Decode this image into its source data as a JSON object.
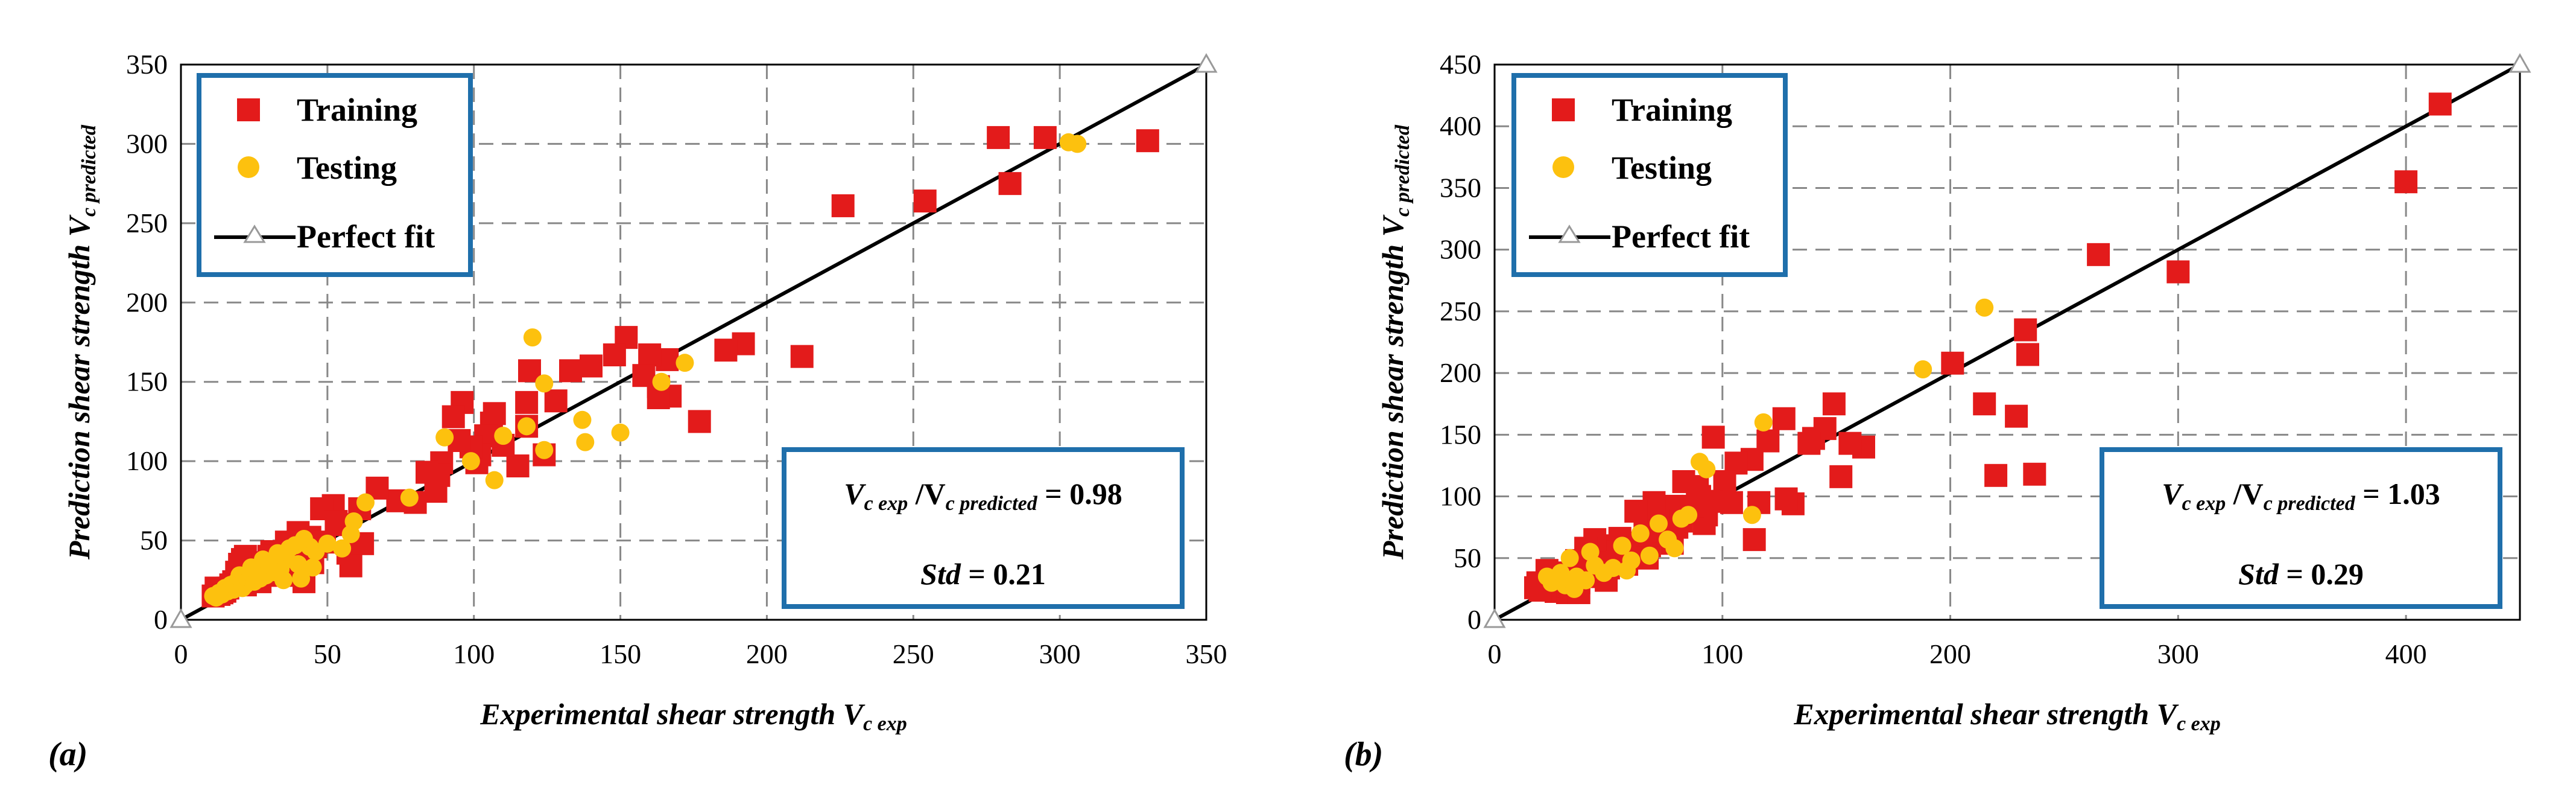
{
  "chart_data": [
    {
      "type": "scatter",
      "panel_label": "(a)",
      "xlabel": {
        "main": "Experimental shear strength V",
        "sub": "c exp"
      },
      "ylabel": {
        "main": "Prediction  shear strength V",
        "sub": "c predicted"
      },
      "xlim": [
        0,
        350
      ],
      "ylim": [
        0,
        350
      ],
      "xticks": [
        "0",
        "50",
        "100",
        "150",
        "200",
        "250",
        "300",
        "350"
      ],
      "yticks": [
        "0",
        "50",
        "100",
        "150",
        "200",
        "250",
        "300",
        "350"
      ],
      "grid": true,
      "legend": {
        "placement": "top-left",
        "training": "Training",
        "testing": "Testing",
        "fit": "Perfect fit"
      },
      "stats": {
        "v1": "V",
        "s1": "c exp",
        "slash": " /V",
        "s2": "c predicted",
        "eq": " = 0.98",
        "std_label": "Std",
        "std_eq": " = 0.21"
      },
      "series": [
        {
          "name": "Training",
          "marker": "square",
          "color": "#e31b1b",
          "points": [
            [
              330,
              302
            ],
            [
              295,
              304
            ],
            [
              279,
              304
            ],
            [
              283,
              275
            ],
            [
              254,
              264
            ],
            [
              226,
              261
            ],
            [
              212,
              166
            ],
            [
              177,
              125
            ],
            [
              192,
              174
            ],
            [
              186,
              170
            ],
            [
              167,
              141
            ],
            [
              166,
              164
            ],
            [
              163,
              147
            ],
            [
              160,
              167
            ],
            [
              163,
              140
            ],
            [
              158,
              154
            ],
            [
              152,
              178
            ],
            [
              148,
              167
            ],
            [
              140,
              160
            ],
            [
              133,
              157
            ],
            [
              128,
              138
            ],
            [
              124,
              104
            ],
            [
              119,
              157
            ],
            [
              118,
              137
            ],
            [
              118,
              122
            ],
            [
              115,
              97
            ],
            [
              110,
              110
            ],
            [
              107,
              130
            ],
            [
              106,
              124
            ],
            [
              104,
              116
            ],
            [
              102,
              104
            ],
            [
              101,
              99
            ],
            [
              99,
              109
            ],
            [
              96,
              137
            ],
            [
              95,
              113
            ],
            [
              93,
              128
            ],
            [
              89,
              99
            ],
            [
              88,
              91
            ],
            [
              84,
              93
            ],
            [
              87,
              81
            ],
            [
              80,
              74
            ],
            [
              74,
              75
            ],
            [
              67,
              83
            ],
            [
              62,
              48
            ],
            [
              61,
              70
            ],
            [
              57,
              42
            ],
            [
              58,
              34
            ],
            [
              54,
              60
            ],
            [
              52,
              72
            ],
            [
              48,
              70
            ],
            [
              46,
              46
            ],
            [
              44,
              52
            ],
            [
              43,
              40
            ],
            [
              41,
              38
            ],
            [
              40,
              55
            ],
            [
              38,
              43
            ],
            [
              36,
              49
            ],
            [
              35,
              37
            ],
            [
              34,
              32
            ],
            [
              33,
              28
            ],
            [
              31,
              43
            ],
            [
              30,
              40
            ],
            [
              28,
              36
            ],
            [
              28,
              30
            ],
            [
              27,
              24
            ],
            [
              25,
              33
            ],
            [
              24,
              29
            ],
            [
              23,
              26
            ],
            [
              22,
              40
            ],
            [
              21,
              38
            ],
            [
              20,
              35
            ],
            [
              19,
              30
            ],
            [
              18,
              24
            ],
            [
              17,
              22
            ],
            [
              16,
              20
            ],
            [
              15,
              18
            ],
            [
              14,
              17
            ],
            [
              13,
              16
            ],
            [
              12,
              20
            ],
            [
              11,
              15
            ],
            [
              38,
              28
            ],
            [
              45,
              36
            ],
            [
              49,
              49
            ],
            [
              53,
              62
            ],
            [
              42,
              24
            ],
            [
              36,
              30
            ],
            [
              31,
              34
            ],
            [
              26,
              30
            ],
            [
              22,
              22
            ]
          ]
        },
        {
          "name": "Testing",
          "marker": "circle",
          "color": "#fdc10e",
          "points": [
            [
              306,
              300
            ],
            [
              303,
              301
            ],
            [
              172,
              162
            ],
            [
              164,
              150
            ],
            [
              150,
              118
            ],
            [
              138,
              112
            ],
            [
              137,
              126
            ],
            [
              124,
              107
            ],
            [
              124,
              149
            ],
            [
              120,
              178
            ],
            [
              118,
              122
            ],
            [
              110,
              116
            ],
            [
              107,
              88
            ],
            [
              99,
              100
            ],
            [
              90,
              115
            ],
            [
              78,
              77
            ],
            [
              63,
              74
            ],
            [
              59,
              62
            ],
            [
              58,
              54
            ],
            [
              55,
              45
            ],
            [
              50,
              48
            ],
            [
              46,
              43
            ],
            [
              44,
              46
            ],
            [
              42,
              51
            ],
            [
              40,
              35
            ],
            [
              39,
              47
            ],
            [
              37,
              45
            ],
            [
              36,
              38
            ],
            [
              34,
              32
            ],
            [
              33,
              42
            ],
            [
              32,
              30
            ],
            [
              30,
              35
            ],
            [
              29,
              28
            ],
            [
              28,
              38
            ],
            [
              27,
              26
            ],
            [
              26,
              30
            ],
            [
              25,
              24
            ],
            [
              24,
              33
            ],
            [
              23,
              27
            ],
            [
              22,
              22
            ],
            [
              21,
              20
            ],
            [
              20,
              28
            ],
            [
              19,
              24
            ],
            [
              18,
              19
            ],
            [
              17,
              22
            ],
            [
              16,
              18
            ],
            [
              15,
              20
            ],
            [
              14,
              16
            ],
            [
              13,
              17
            ],
            [
              12,
              14
            ],
            [
              11,
              15
            ],
            [
              45,
              33
            ],
            [
              41,
              26
            ],
            [
              35,
              25
            ]
          ]
        }
      ]
    },
    {
      "type": "scatter",
      "panel_label": "(b)",
      "xlabel": {
        "main": "Experimental shear strength V",
        "sub": "c exp"
      },
      "ylabel": {
        "main": "Prediction  shear strength V",
        "sub": "c predicted"
      },
      "xlim": [
        0,
        450
      ],
      "ylim": [
        0,
        450
      ],
      "xticks": [
        "0",
        "100",
        "200",
        "300",
        "400"
      ],
      "yticks": [
        "0",
        "50",
        "100",
        "150",
        "200",
        "250",
        "300",
        "350",
        "400",
        "450"
      ],
      "grid": true,
      "legend": {
        "placement": "top-left",
        "training": "Training",
        "testing": "Testing",
        "fit": "Perfect fit"
      },
      "stats": {
        "v1": "V",
        "s1": "c exp",
        "slash": " /V",
        "s2": "c predicted",
        "eq": " = 1.03",
        "std_label": "Std",
        "std_eq": " = 0.29"
      },
      "series": [
        {
          "name": "Training",
          "marker": "square",
          "color": "#e31b1b",
          "points": [
            [
              415,
              418
            ],
            [
              400,
              355
            ],
            [
              300,
              282
            ],
            [
              265,
              296
            ],
            [
              237,
              118
            ],
            [
              234,
              215
            ],
            [
              233,
              235
            ],
            [
              229,
              165
            ],
            [
              220,
              117
            ],
            [
              215,
              175
            ],
            [
              201,
              208
            ],
            [
              162,
              140
            ],
            [
              156,
              143
            ],
            [
              152,
              116
            ],
            [
              149,
              175
            ],
            [
              145,
              155
            ],
            [
              140,
              147
            ],
            [
              138,
              143
            ],
            [
              131,
              94
            ],
            [
              128,
              98
            ],
            [
              127,
              163
            ],
            [
              120,
              145
            ],
            [
              116,
              95
            ],
            [
              114,
              65
            ],
            [
              113,
              130
            ],
            [
              106,
              127
            ],
            [
              101,
              112
            ],
            [
              96,
              148
            ],
            [
              95,
              96
            ],
            [
              93,
              85
            ],
            [
              92,
              78
            ],
            [
              89,
              108
            ],
            [
              87,
              92
            ],
            [
              83,
              112
            ],
            [
              80,
              75
            ],
            [
              78,
              92
            ],
            [
              75,
              68
            ],
            [
              72,
              83
            ],
            [
              70,
              95
            ],
            [
              68,
              60
            ],
            [
              66,
              72
            ],
            [
              64,
              58
            ],
            [
              62,
              88
            ],
            [
              60,
              62
            ],
            [
              58,
              54
            ],
            [
              55,
              66
            ],
            [
              52,
              60
            ],
            [
              50,
              42
            ],
            [
              48,
              55
            ],
            [
              46,
              48
            ],
            [
              44,
              65
            ],
            [
              42,
              40
            ],
            [
              40,
              58
            ],
            [
              38,
              38
            ],
            [
              37,
              30
            ],
            [
              36,
              25
            ],
            [
              35,
              42
            ],
            [
              34,
              33
            ],
            [
              33,
              28
            ],
            [
              32,
              22
            ],
            [
              31,
              36
            ],
            [
              30,
              30
            ],
            [
              29,
              26
            ],
            [
              28,
              38
            ],
            [
              27,
              23
            ],
            [
              26,
              30
            ],
            [
              25,
              27
            ],
            [
              24,
              33
            ],
            [
              23,
              40
            ],
            [
              22,
              25
            ],
            [
              21,
              28
            ],
            [
              20,
              24
            ],
            [
              19,
              30
            ],
            [
              18,
              26
            ],
            [
              36,
              48
            ],
            [
              43,
              35
            ],
            [
              58,
              45
            ],
            [
              82,
              80
            ],
            [
              67,
              50
            ],
            [
              78,
              62
            ],
            [
              90,
              100
            ],
            [
              104,
              95
            ],
            [
              37,
              22
            ],
            [
              25,
              35
            ],
            [
              49,
              32
            ]
          ]
        },
        {
          "name": "Testing",
          "marker": "circle",
          "color": "#fdc10e",
          "points": [
            [
              215,
              253
            ],
            [
              188,
              203
            ],
            [
              118,
              160
            ],
            [
              113,
              85
            ],
            [
              93,
              122
            ],
            [
              90,
              128
            ],
            [
              85,
              85
            ],
            [
              82,
              82
            ],
            [
              79,
              58
            ],
            [
              76,
              65
            ],
            [
              72,
              78
            ],
            [
              68,
              52
            ],
            [
              64,
              70
            ],
            [
              60,
              48
            ],
            [
              56,
              60
            ],
            [
              52,
              42
            ],
            [
              48,
              38
            ],
            [
              44,
              44
            ],
            [
              40,
              32
            ],
            [
              36,
              35
            ],
            [
              33,
              50
            ],
            [
              31,
              28
            ],
            [
              29,
              38
            ],
            [
              27,
              32
            ],
            [
              25,
              30
            ],
            [
              23,
              35
            ],
            [
              35,
              25
            ],
            [
              42,
              55
            ],
            [
              58,
              40
            ]
          ]
        }
      ]
    }
  ]
}
